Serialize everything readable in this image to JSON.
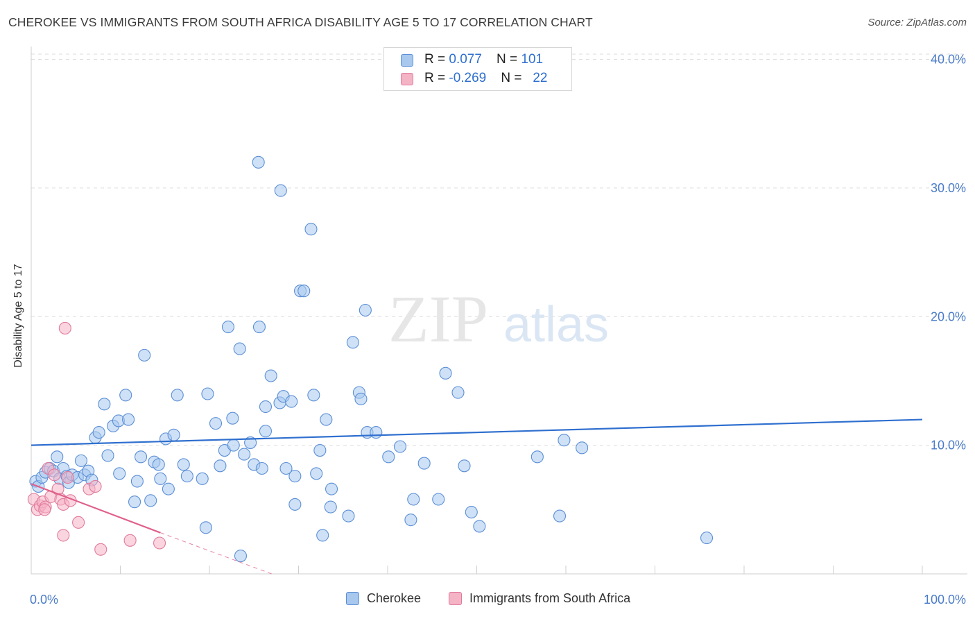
{
  "header": {
    "title": "CHEROKEE VS IMMIGRANTS FROM SOUTH AFRICA DISABILITY AGE 5 TO 17 CORRELATION CHART",
    "source": "Source: ZipAtlas.com"
  },
  "watermark": {
    "zip": "ZIP",
    "atlas": "atlas"
  },
  "legend_top": [
    {
      "r_label": "R = ",
      "r_value": "0.077",
      "n_label": "N = ",
      "n_value": "101",
      "color": "#a8c8ee"
    },
    {
      "r_label": "R = ",
      "r_value": "-0.269",
      "n_label": "N = ",
      "n_value": "22",
      "color": "#f5b3c6"
    }
  ],
  "legend_bottom": [
    {
      "label": "Cherokee",
      "color": "#a8c8ee"
    },
    {
      "label": "Immigrants from South Africa",
      "color": "#f5b3c6"
    }
  ],
  "colors": {
    "blue_fill": "#a8c8ee",
    "blue_stroke": "#5b8fd6",
    "blue_line": "#2f6fcf",
    "pink_fill": "#f5b3c6",
    "pink_stroke": "#e07a9c",
    "pink_line": "#e0608a",
    "grid": "#dddddd",
    "axis_text": "#4a7cc9"
  },
  "chart_data": {
    "type": "scatter",
    "title": "CHEROKEE VS IMMIGRANTS FROM SOUTH AFRICA DISABILITY AGE 5 TO 17 CORRELATION CHART",
    "xlabel": "",
    "ylabel": "Disability Age 5 to 17",
    "xlim": [
      0,
      100
    ],
    "ylim": [
      0,
      41
    ],
    "x_tick_labels": [
      "0.0%",
      "100.0%"
    ],
    "y_ticks": [
      10,
      20,
      30,
      40
    ],
    "y_tick_labels": [
      "10.0%",
      "20.0%",
      "30.0%",
      "40.0%"
    ],
    "grid": true,
    "series": [
      {
        "name": "Cherokee",
        "R": 0.077,
        "N": 101,
        "trend": {
          "x": [
            0,
            100
          ],
          "y": [
            10.0,
            12.0
          ]
        },
        "points": [
          [
            0.5,
            7.2
          ],
          [
            0.8,
            6.8
          ],
          [
            1.2,
            7.5
          ],
          [
            1.6,
            7.9
          ],
          [
            2.1,
            8.2
          ],
          [
            2.5,
            8.0
          ],
          [
            2.9,
            9.1
          ],
          [
            3.6,
            8.2
          ],
          [
            3.2,
            7.4
          ],
          [
            4.0,
            7.6
          ],
          [
            4.2,
            7.1
          ],
          [
            4.6,
            7.7
          ],
          [
            5.2,
            7.5
          ],
          [
            5.6,
            8.8
          ],
          [
            6.0,
            7.7
          ],
          [
            6.4,
            8.0
          ],
          [
            6.8,
            7.3
          ],
          [
            7.2,
            10.6
          ],
          [
            7.6,
            11.0
          ],
          [
            8.2,
            13.2
          ],
          [
            8.6,
            9.2
          ],
          [
            9.2,
            11.5
          ],
          [
            9.8,
            11.9
          ],
          [
            9.9,
            7.8
          ],
          [
            10.6,
            13.9
          ],
          [
            10.9,
            12.0
          ],
          [
            11.6,
            5.6
          ],
          [
            11.9,
            7.2
          ],
          [
            12.3,
            9.1
          ],
          [
            12.7,
            17.0
          ],
          [
            13.4,
            5.7
          ],
          [
            13.8,
            8.7
          ],
          [
            14.3,
            8.5
          ],
          [
            14.5,
            7.4
          ],
          [
            15.1,
            10.5
          ],
          [
            15.4,
            6.6
          ],
          [
            16.0,
            10.8
          ],
          [
            16.4,
            13.9
          ],
          [
            17.1,
            8.5
          ],
          [
            17.5,
            7.6
          ],
          [
            19.2,
            7.4
          ],
          [
            19.6,
            3.6
          ],
          [
            19.8,
            14.0
          ],
          [
            20.7,
            11.7
          ],
          [
            21.2,
            8.4
          ],
          [
            21.7,
            9.6
          ],
          [
            22.1,
            19.2
          ],
          [
            22.6,
            12.1
          ],
          [
            23.4,
            17.5
          ],
          [
            23.9,
            9.3
          ],
          [
            24.6,
            10.2
          ],
          [
            25.0,
            8.5
          ],
          [
            25.6,
            19.2
          ],
          [
            25.9,
            8.2
          ],
          [
            26.3,
            13.0
          ],
          [
            26.9,
            15.4
          ],
          [
            27.9,
            13.3
          ],
          [
            28.3,
            13.8
          ],
          [
            29.2,
            13.4
          ],
          [
            29.6,
            7.6
          ],
          [
            29.6,
            5.4
          ],
          [
            30.2,
            22.0
          ],
          [
            30.6,
            22.0
          ],
          [
            31.7,
            13.9
          ],
          [
            32.0,
            7.8
          ],
          [
            32.4,
            9.6
          ],
          [
            33.1,
            12.0
          ],
          [
            32.7,
            3.0
          ],
          [
            33.6,
            5.2
          ],
          [
            35.6,
            4.5
          ],
          [
            36.1,
            18.0
          ],
          [
            36.8,
            14.1
          ],
          [
            37.0,
            13.6
          ],
          [
            37.7,
            11.0
          ],
          [
            38.7,
            11.0
          ],
          [
            40.1,
            9.1
          ],
          [
            41.4,
            9.9
          ],
          [
            42.6,
            4.2
          ],
          [
            42.9,
            5.8
          ],
          [
            44.1,
            8.6
          ],
          [
            45.7,
            5.8
          ],
          [
            46.5,
            15.6
          ],
          [
            47.9,
            14.1
          ],
          [
            48.6,
            8.4
          ],
          [
            49.4,
            4.8
          ],
          [
            50.3,
            3.7
          ],
          [
            56.8,
            9.1
          ],
          [
            59.3,
            4.5
          ],
          [
            59.8,
            10.4
          ],
          [
            61.8,
            9.8
          ],
          [
            75.8,
            2.8
          ],
          [
            25.5,
            32.0
          ],
          [
            28.0,
            29.8
          ],
          [
            31.4,
            26.8
          ],
          [
            26.3,
            11.1
          ],
          [
            37.5,
            20.5
          ],
          [
            23.5,
            1.4
          ],
          [
            22.7,
            10.0
          ],
          [
            33.7,
            6.6
          ],
          [
            28.6,
            8.2
          ]
        ]
      },
      {
        "name": "Immigrants from South Africa",
        "R": -0.269,
        "N": 22,
        "trend": {
          "x": [
            0,
            14.5
          ],
          "y": [
            7.0,
            3.2
          ]
        },
        "trend_extension": {
          "x": [
            14.5,
            27.0
          ],
          "y": [
            3.2,
            0.0
          ]
        },
        "points": [
          [
            0.3,
            5.8
          ],
          [
            0.7,
            5.0
          ],
          [
            1.0,
            5.3
          ],
          [
            1.3,
            5.6
          ],
          [
            1.6,
            5.2
          ],
          [
            1.9,
            8.2
          ],
          [
            2.2,
            6.0
          ],
          [
            2.6,
            7.7
          ],
          [
            3.0,
            6.6
          ],
          [
            3.3,
            5.8
          ],
          [
            3.6,
            5.4
          ],
          [
            4.1,
            7.5
          ],
          [
            4.4,
            5.7
          ],
          [
            5.3,
            4.0
          ],
          [
            6.5,
            6.6
          ],
          [
            7.2,
            6.8
          ],
          [
            3.8,
            19.1
          ],
          [
            3.6,
            3.0
          ],
          [
            7.8,
            1.9
          ],
          [
            11.1,
            2.6
          ],
          [
            14.4,
            2.4
          ],
          [
            1.5,
            5.0
          ]
        ]
      }
    ]
  }
}
